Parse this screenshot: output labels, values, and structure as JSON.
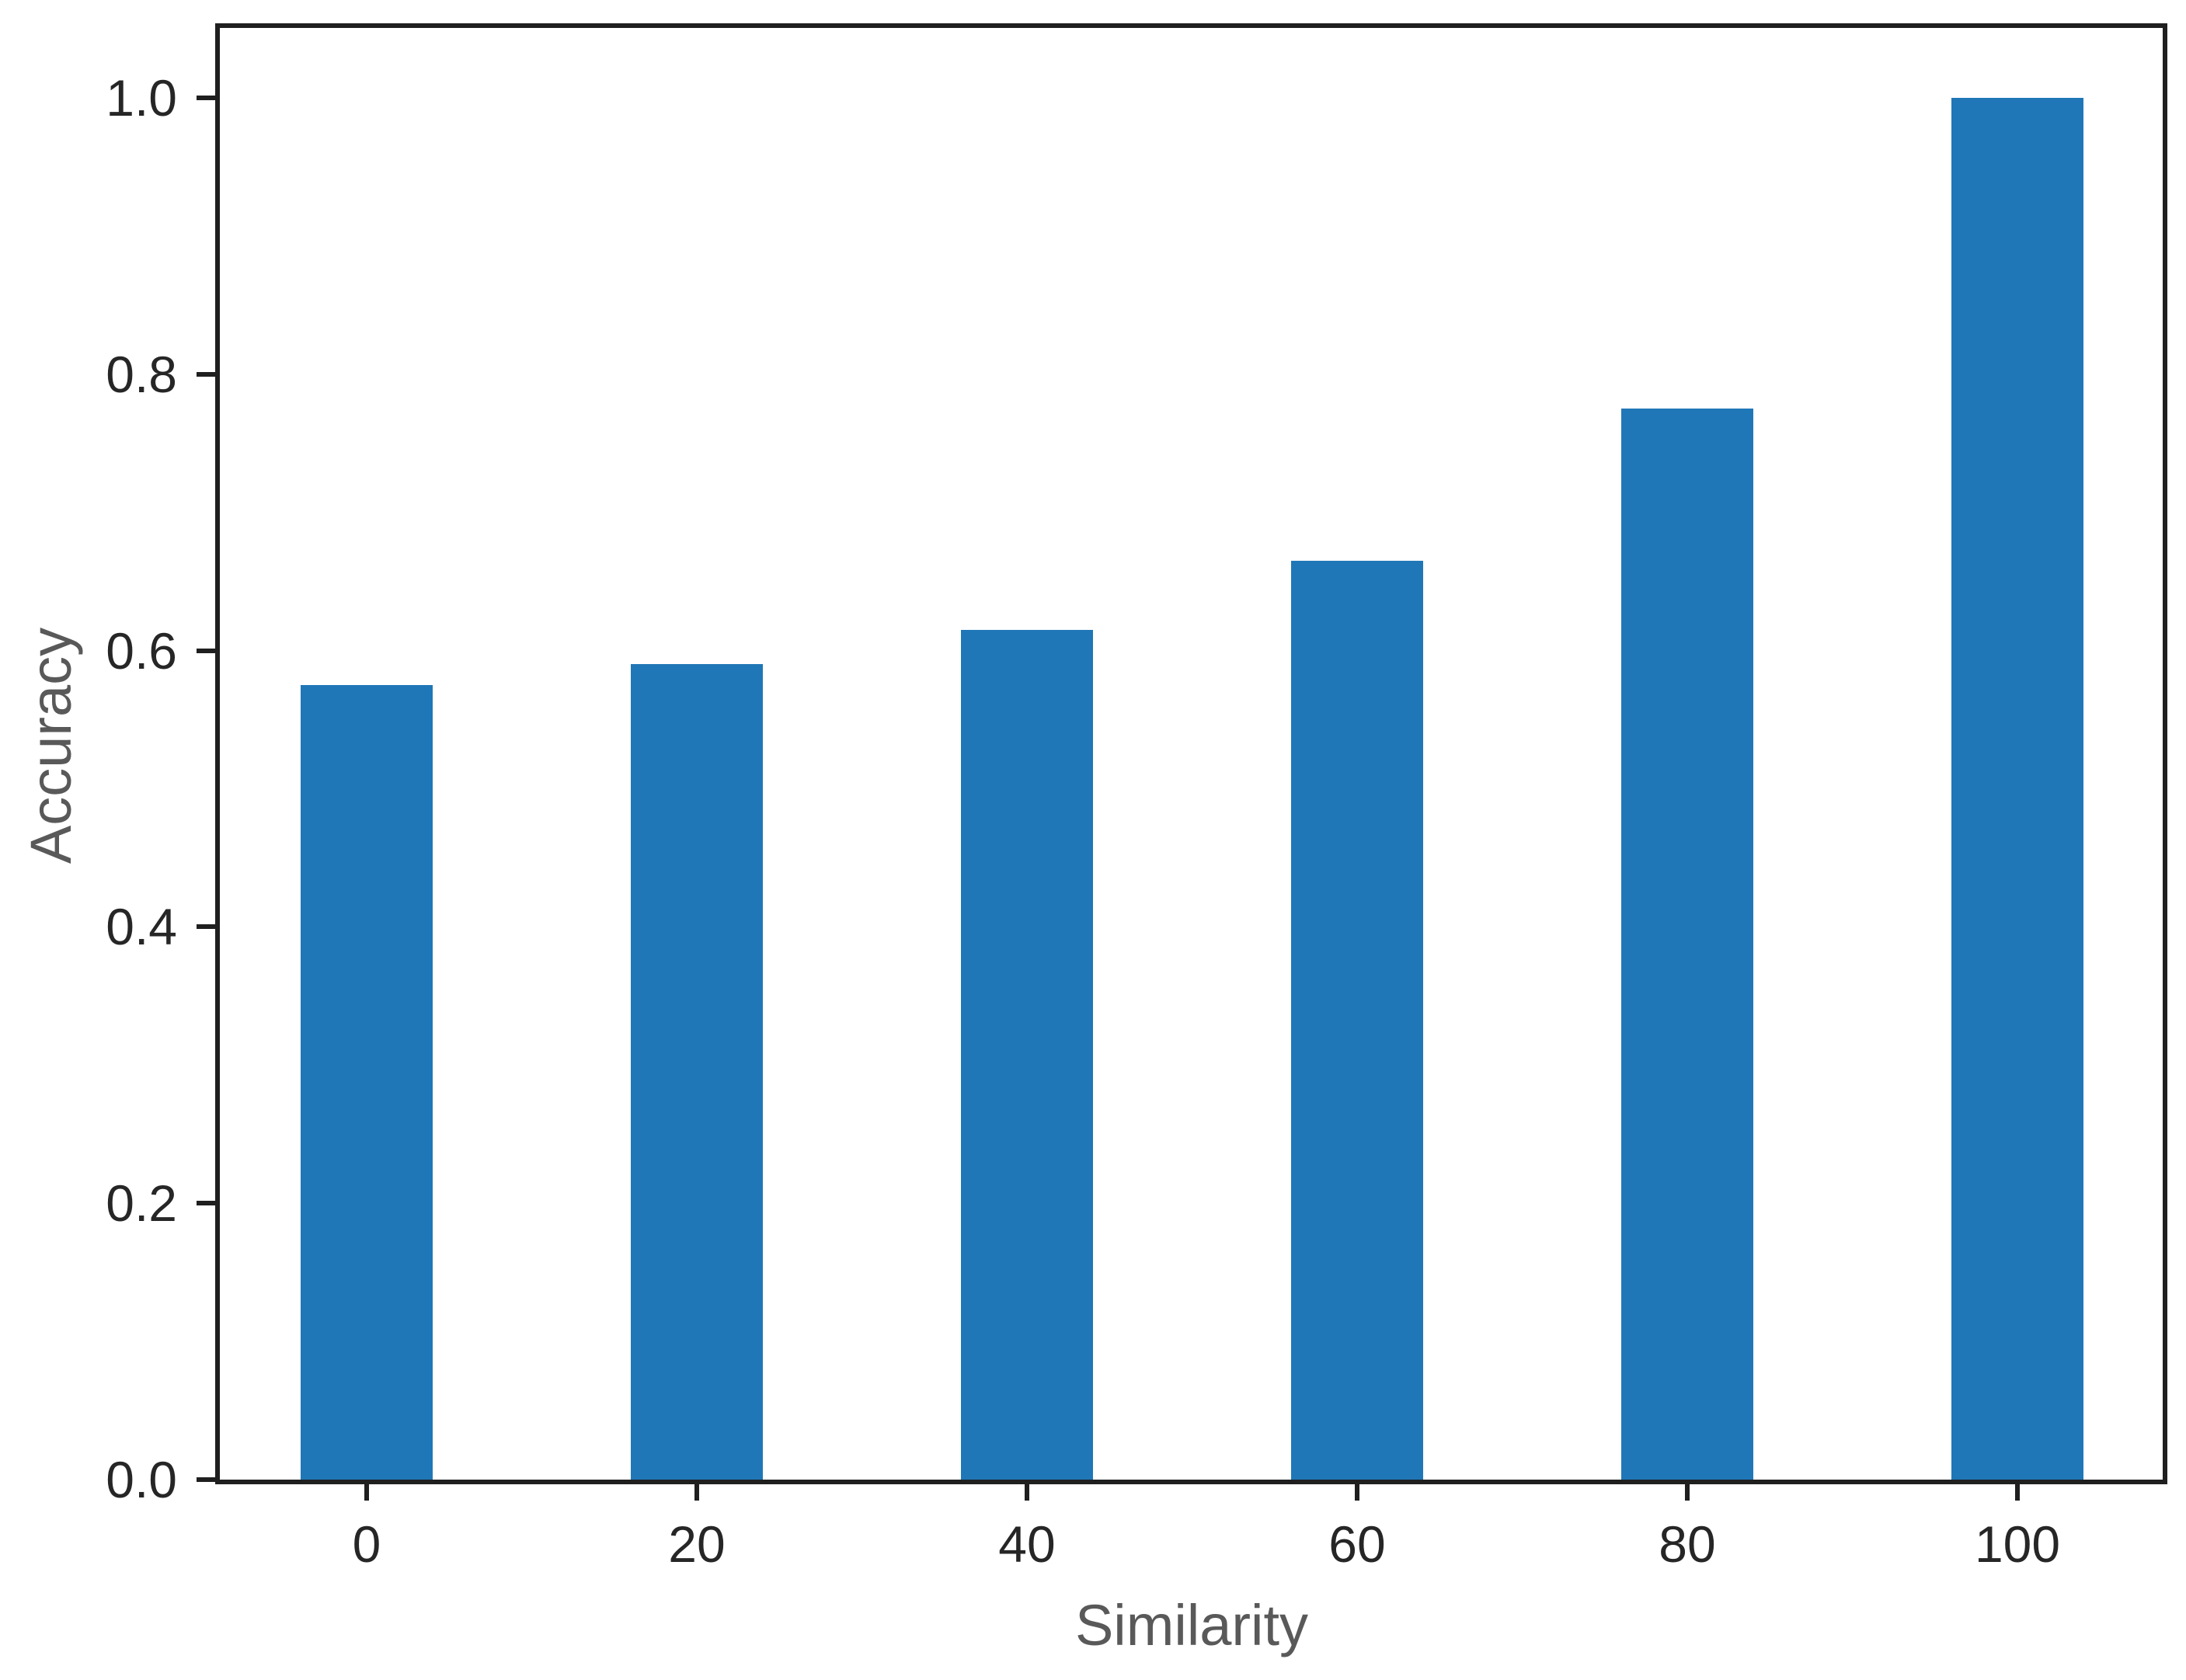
{
  "chart_data": {
    "type": "bar",
    "title": "",
    "categories": [
      "0",
      "20",
      "40",
      "60",
      "80",
      "100"
    ],
    "values": [
      0.575,
      0.59,
      0.615,
      0.665,
      0.775,
      1.0
    ],
    "xlabel": "Similarity",
    "ylabel": "Accuracy",
    "ylim": [
      0.0,
      1.0
    ],
    "ytick_values": [
      0.0,
      0.2,
      0.4,
      0.6,
      0.8,
      1.0
    ],
    "ytick_labels": [
      "0.0",
      "0.2",
      "0.4",
      "0.6",
      "0.8",
      "1.0"
    ],
    "bar_color": "#2077b7",
    "grid": false,
    "legend_position": "none",
    "tick_label_color": "#262626",
    "axis_label_color": "#595959",
    "spine_color": "#1f1f1f"
  }
}
